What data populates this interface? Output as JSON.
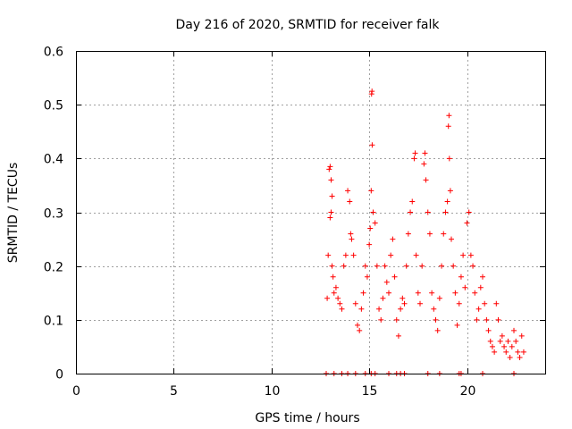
{
  "chart_data": {
    "type": "scatter",
    "title": "Day 216 of 2020, SRMTID for receiver falk",
    "xlabel": "GPS time / hours",
    "ylabel": "SRMTID / TECUs",
    "xlim": [
      0,
      24
    ],
    "ylim": [
      0,
      0.6
    ],
    "xticks": [
      0,
      5,
      10,
      15,
      20
    ],
    "xtick_labels": [
      "0",
      "5",
      "10",
      "15",
      "20"
    ],
    "yticks": [
      0,
      0.1,
      0.2,
      0.3,
      0.4,
      0.5,
      0.6
    ],
    "ytick_labels": [
      "0",
      "0.1",
      "0.2",
      "0.3",
      "0.4",
      "0.5",
      "0.6"
    ],
    "grid": true,
    "legend": "none",
    "marker": "+",
    "series": [
      {
        "name": "SRMTID",
        "color": "#ff0000",
        "points": [
          [
            12.8,
            0.0
          ],
          [
            13.2,
            0.0
          ],
          [
            13.6,
            0.0
          ],
          [
            13.9,
            0.0
          ],
          [
            14.3,
            0.0
          ],
          [
            14.8,
            0.0
          ],
          [
            15.1,
            0.0
          ],
          [
            15.3,
            0.0
          ],
          [
            16.0,
            0.0
          ],
          [
            16.4,
            0.0
          ],
          [
            16.6,
            0.0
          ],
          [
            16.8,
            0.0
          ],
          [
            18.0,
            0.0
          ],
          [
            18.6,
            0.0
          ],
          [
            19.6,
            0.0
          ],
          [
            19.7,
            0.0
          ],
          [
            20.8,
            0.0
          ],
          [
            22.4,
            0.0
          ],
          [
            12.85,
            0.14
          ],
          [
            12.9,
            0.22
          ],
          [
            12.95,
            0.38
          ],
          [
            13.0,
            0.385
          ],
          [
            13.05,
            0.36
          ],
          [
            13.1,
            0.33
          ],
          [
            13.0,
            0.29
          ],
          [
            13.05,
            0.3
          ],
          [
            13.1,
            0.2
          ],
          [
            13.15,
            0.18
          ],
          [
            13.2,
            0.15
          ],
          [
            13.3,
            0.16
          ],
          [
            13.4,
            0.14
          ],
          [
            13.5,
            0.13
          ],
          [
            13.6,
            0.12
          ],
          [
            13.7,
            0.2
          ],
          [
            13.8,
            0.22
          ],
          [
            13.9,
            0.34
          ],
          [
            14.0,
            0.32
          ],
          [
            14.05,
            0.26
          ],
          [
            14.1,
            0.25
          ],
          [
            14.2,
            0.22
          ],
          [
            14.3,
            0.13
          ],
          [
            14.4,
            0.09
          ],
          [
            14.5,
            0.08
          ],
          [
            14.6,
            0.12
          ],
          [
            14.7,
            0.15
          ],
          [
            14.8,
            0.2
          ],
          [
            14.9,
            0.18
          ],
          [
            15.0,
            0.24
          ],
          [
            15.05,
            0.27
          ],
          [
            15.1,
            0.34
          ],
          [
            15.15,
            0.425
          ],
          [
            15.12,
            0.52
          ],
          [
            15.14,
            0.525
          ],
          [
            15.2,
            0.3
          ],
          [
            15.3,
            0.28
          ],
          [
            15.4,
            0.2
          ],
          [
            15.5,
            0.12
          ],
          [
            15.6,
            0.1
          ],
          [
            15.7,
            0.14
          ],
          [
            15.8,
            0.2
          ],
          [
            15.9,
            0.17
          ],
          [
            16.0,
            0.15
          ],
          [
            16.1,
            0.22
          ],
          [
            16.2,
            0.25
          ],
          [
            16.3,
            0.18
          ],
          [
            16.4,
            0.1
          ],
          [
            16.5,
            0.07
          ],
          [
            16.6,
            0.12
          ],
          [
            16.7,
            0.14
          ],
          [
            16.8,
            0.13
          ],
          [
            16.9,
            0.2
          ],
          [
            17.0,
            0.26
          ],
          [
            17.1,
            0.3
          ],
          [
            17.2,
            0.32
          ],
          [
            17.3,
            0.4
          ],
          [
            17.35,
            0.41
          ],
          [
            17.4,
            0.22
          ],
          [
            17.5,
            0.15
          ],
          [
            17.6,
            0.13
          ],
          [
            17.7,
            0.2
          ],
          [
            17.8,
            0.39
          ],
          [
            17.85,
            0.41
          ],
          [
            17.9,
            0.36
          ],
          [
            18.0,
            0.3
          ],
          [
            18.1,
            0.26
          ],
          [
            18.2,
            0.15
          ],
          [
            18.3,
            0.12
          ],
          [
            18.4,
            0.1
          ],
          [
            18.5,
            0.08
          ],
          [
            18.6,
            0.14
          ],
          [
            18.7,
            0.2
          ],
          [
            18.8,
            0.26
          ],
          [
            18.9,
            0.3
          ],
          [
            19.0,
            0.32
          ],
          [
            19.05,
            0.46
          ],
          [
            19.08,
            0.48
          ],
          [
            19.1,
            0.4
          ],
          [
            19.15,
            0.34
          ],
          [
            19.2,
            0.25
          ],
          [
            19.3,
            0.2
          ],
          [
            19.4,
            0.15
          ],
          [
            19.5,
            0.09
          ],
          [
            19.6,
            0.13
          ],
          [
            19.7,
            0.18
          ],
          [
            19.8,
            0.22
          ],
          [
            19.9,
            0.16
          ],
          [
            20.0,
            0.28
          ],
          [
            20.1,
            0.3
          ],
          [
            20.2,
            0.22
          ],
          [
            20.3,
            0.2
          ],
          [
            20.4,
            0.15
          ],
          [
            20.5,
            0.1
          ],
          [
            20.6,
            0.12
          ],
          [
            20.7,
            0.16
          ],
          [
            20.8,
            0.18
          ],
          [
            20.9,
            0.13
          ],
          [
            21.0,
            0.1
          ],
          [
            21.1,
            0.08
          ],
          [
            21.2,
            0.06
          ],
          [
            21.3,
            0.05
          ],
          [
            21.4,
            0.04
          ],
          [
            21.5,
            0.13
          ],
          [
            21.6,
            0.1
          ],
          [
            21.7,
            0.06
          ],
          [
            21.8,
            0.07
          ],
          [
            21.9,
            0.05
          ],
          [
            22.0,
            0.04
          ],
          [
            22.1,
            0.06
          ],
          [
            22.2,
            0.03
          ],
          [
            22.3,
            0.05
          ],
          [
            22.4,
            0.08
          ],
          [
            22.5,
            0.06
          ],
          [
            22.6,
            0.04
          ],
          [
            22.7,
            0.03
          ],
          [
            22.8,
            0.07
          ],
          [
            22.9,
            0.04
          ]
        ]
      }
    ]
  }
}
